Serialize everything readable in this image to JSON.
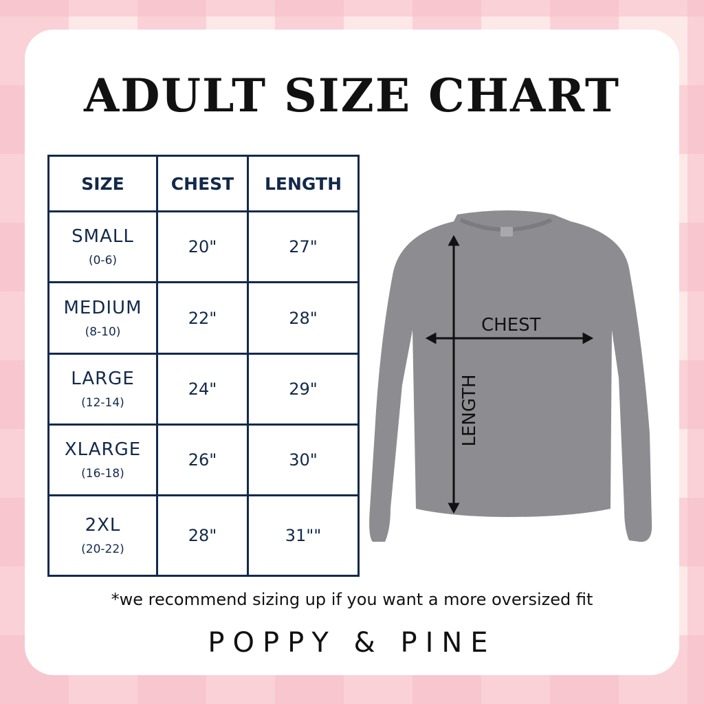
{
  "title": "ADULT SIZE CHART",
  "table": {
    "headers": [
      "SIZE",
      "CHEST",
      "LENGTH"
    ],
    "rows": [
      {
        "size": "SMALL",
        "range": "(0-6)",
        "chest": "20\"",
        "length": "27\""
      },
      {
        "size": "MEDIUM",
        "range": "(8-10)",
        "chest": "22\"",
        "length": "28\""
      },
      {
        "size": "LARGE",
        "range": "(12-14)",
        "chest": "24\"",
        "length": "29\""
      },
      {
        "size": "XLARGE",
        "range": "(16-18)",
        "chest": "26\"",
        "length": "30\""
      },
      {
        "size": "2XL",
        "range": "(20-22)",
        "chest": "28\"",
        "length": "31\"\""
      }
    ]
  },
  "diagram": {
    "chest_label": "CHEST",
    "length_label": "LENGTH",
    "shirt_color": "#8d8d91"
  },
  "note": "*we recommend sizing up if you want a more oversized fit",
  "brand": "POPPY & PINE",
  "colors": {
    "table": "#13294b",
    "background": "#fde8e8",
    "stripe": "#f7bec8"
  }
}
